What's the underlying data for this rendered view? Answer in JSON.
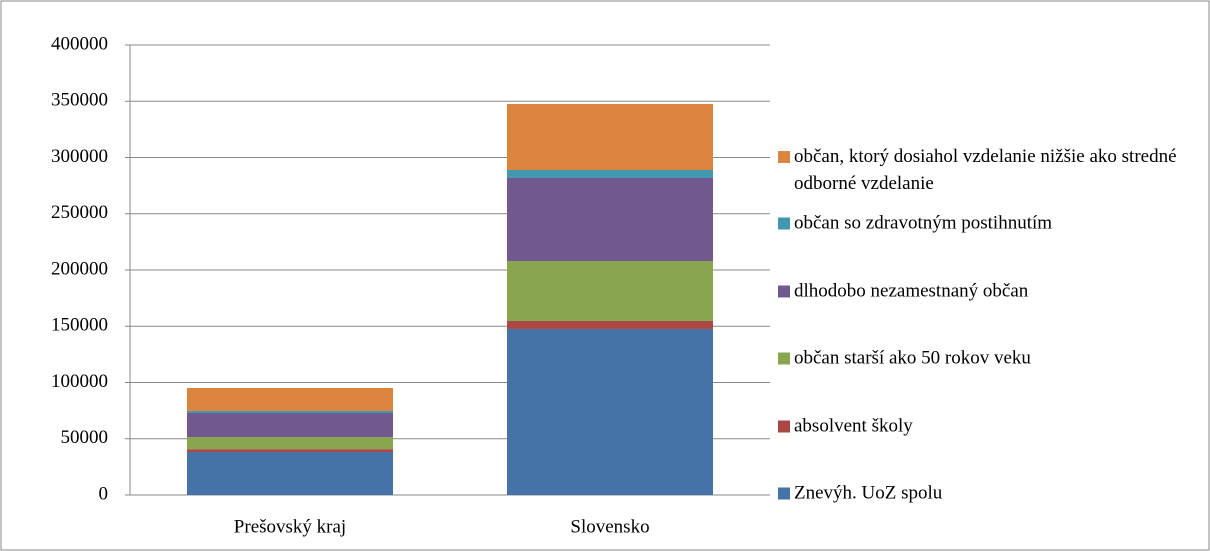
{
  "chart_data": {
    "type": "stacked_bar",
    "categories": [
      "Prešovský kraj",
      "Slovensko"
    ],
    "series": [
      {
        "name": "Znevýh. UoZ spolu",
        "color": "#4572a7",
        "values": [
          38200,
          147600
        ]
      },
      {
        "name": "absolvent školy",
        "color": "#aa4643",
        "values": [
          2500,
          7100
        ]
      },
      {
        "name": "občan starší ako 50 rokov veku",
        "color": "#89a54e",
        "values": [
          10800,
          53300
        ]
      },
      {
        "name": "dlhodobo nezamestnaný občan",
        "color": "#71588f",
        "values": [
          21400,
          73800
        ]
      },
      {
        "name": "občan so zdravotným postihnutím",
        "color": "#4198af",
        "values": [
          1800,
          7100
        ]
      },
      {
        "name": "občan, ktorý dosiahol vzdelanie nižšie ako stredné odborné vzdelanie",
        "color": "#db843d",
        "values": [
          20400,
          58700
        ]
      }
    ],
    "ylim": [
      0,
      400000
    ],
    "yticks": [
      0,
      50000,
      100000,
      150000,
      200000,
      250000,
      300000,
      350000,
      400000
    ],
    "grid": true,
    "legend": "right"
  }
}
